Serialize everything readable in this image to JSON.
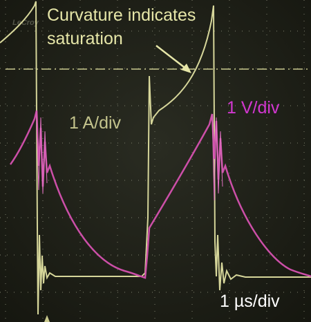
{
  "brand": "LeCroy",
  "annotation": {
    "lines": [
      "Curvature indicates",
      "saturation"
    ]
  },
  "current_scale": "1 A/div",
  "voltage_scale": "1 V/div",
  "time_scale": "1 µs/div"
}
